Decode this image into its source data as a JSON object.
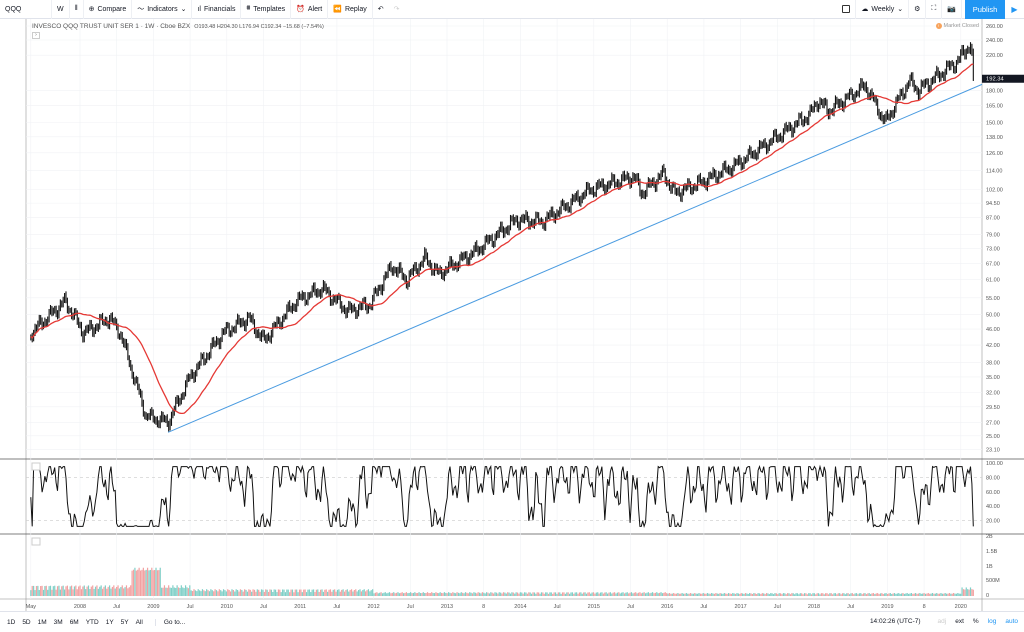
{
  "toolbar": {
    "symbol": "QQQ",
    "interval": "W",
    "compare": "Compare",
    "indicators": "Indicators",
    "financials": "Financials",
    "templates": "Templates",
    "alert": "Alert",
    "replay": "Replay",
    "layout_name": "Weekly",
    "publish": "Publish"
  },
  "legend": {
    "title": "INVESCO QQQ TRUST UNIT SER 1 · 1W · Cboe BZX",
    "ohlc": "O193.48 H204.30 L176.94 C192.34 −15.68 (−7.54%)"
  },
  "market_status": "Market Closed",
  "last_price": "192.34",
  "colors": {
    "accent": "#2196f3",
    "ma": "#e53935",
    "trend": "#4a9be0",
    "vol_up": "#7fcfc7",
    "vol_down": "#f2a1a1"
  },
  "price_axis": [
    "260.00",
    "240.00",
    "220.00",
    "180.00",
    "165.00",
    "150.00",
    "138.00",
    "126.00",
    "114.00",
    "102.00",
    "94.50",
    "87.00",
    "79.00",
    "73.00",
    "67.00",
    "61.00",
    "55.00",
    "50.00",
    "46.00",
    "42.00",
    "38.00",
    "35.00",
    "32.00",
    "29.50",
    "27.00",
    "25.00",
    "23.10"
  ],
  "osc_axis": [
    "100.00",
    "80.00",
    "60.00",
    "40.00",
    "20.00"
  ],
  "vol_axis": [
    "2B",
    "1.5B",
    "1B",
    "500M",
    "0"
  ],
  "time_axis": [
    [
      "May",
      2007.33
    ],
    [
      "2008",
      2008
    ],
    [
      "Jul",
      2008.5
    ],
    [
      "2009",
      2009
    ],
    [
      "Jul",
      2009.5
    ],
    [
      "2010",
      2010
    ],
    [
      "Jul",
      2010.5
    ],
    [
      "2011",
      2011
    ],
    [
      "Jul",
      2011.5
    ],
    [
      "2012",
      2012
    ],
    [
      "Jul",
      2012.5
    ],
    [
      "2013",
      2013
    ],
    [
      "8",
      2013.5
    ],
    [
      "2014",
      2014
    ],
    [
      "Jul",
      2014.5
    ],
    [
      "2015",
      2015
    ],
    [
      "Jul",
      2015.5
    ],
    [
      "2016",
      2016
    ],
    [
      "Jul",
      2016.5
    ],
    [
      "2017",
      2017
    ],
    [
      "Jul",
      2017.5
    ],
    [
      "2018",
      2018
    ],
    [
      "Jul",
      2018.5
    ],
    [
      "2019",
      2019
    ],
    [
      "8",
      2019.5
    ],
    [
      "2020",
      2020
    ]
  ],
  "price_anchors": [
    [
      2007.33,
      45
    ],
    [
      2007.8,
      54
    ],
    [
      2008.05,
      45
    ],
    [
      2008.4,
      49
    ],
    [
      2008.55,
      45
    ],
    [
      2008.8,
      32
    ],
    [
      2008.9,
      28
    ],
    [
      2009.2,
      27
    ],
    [
      2009.5,
      35
    ],
    [
      2009.95,
      45
    ],
    [
      2010.3,
      49
    ],
    [
      2010.5,
      43
    ],
    [
      2010.95,
      54
    ],
    [
      2011.3,
      58
    ],
    [
      2011.65,
      51
    ],
    [
      2011.95,
      53
    ],
    [
      2012.25,
      66
    ],
    [
      2012.45,
      61
    ],
    [
      2012.7,
      69
    ],
    [
      2012.88,
      63
    ],
    [
      2013.4,
      72
    ],
    [
      2013.95,
      86
    ],
    [
      2014.3,
      85
    ],
    [
      2014.95,
      102
    ],
    [
      2015.55,
      110
    ],
    [
      2015.65,
      100
    ],
    [
      2015.95,
      112
    ],
    [
      2016.1,
      100
    ],
    [
      2016.5,
      107
    ],
    [
      2016.95,
      118
    ],
    [
      2017.95,
      157
    ],
    [
      2018.05,
      170
    ],
    [
      2018.2,
      160
    ],
    [
      2018.7,
      185
    ],
    [
      2018.97,
      150
    ],
    [
      2019.3,
      190
    ],
    [
      2019.42,
      180
    ],
    [
      2019.95,
      212
    ],
    [
      2020.13,
      235
    ],
    [
      2020.18,
      192.34
    ]
  ],
  "trendline": [
    [
      2009.2,
      25.5
    ],
    [
      2020.4,
      190
    ]
  ],
  "bottom": {
    "ranges": [
      "1D",
      "5D",
      "1M",
      "3M",
      "6M",
      "YTD",
      "1Y",
      "5Y",
      "All"
    ],
    "goto": "Go to...",
    "time": "14:02:26 (UTC-7)",
    "adj": "adj",
    "ext": "ext",
    "pct": "%",
    "log": "log",
    "auto": "auto"
  }
}
